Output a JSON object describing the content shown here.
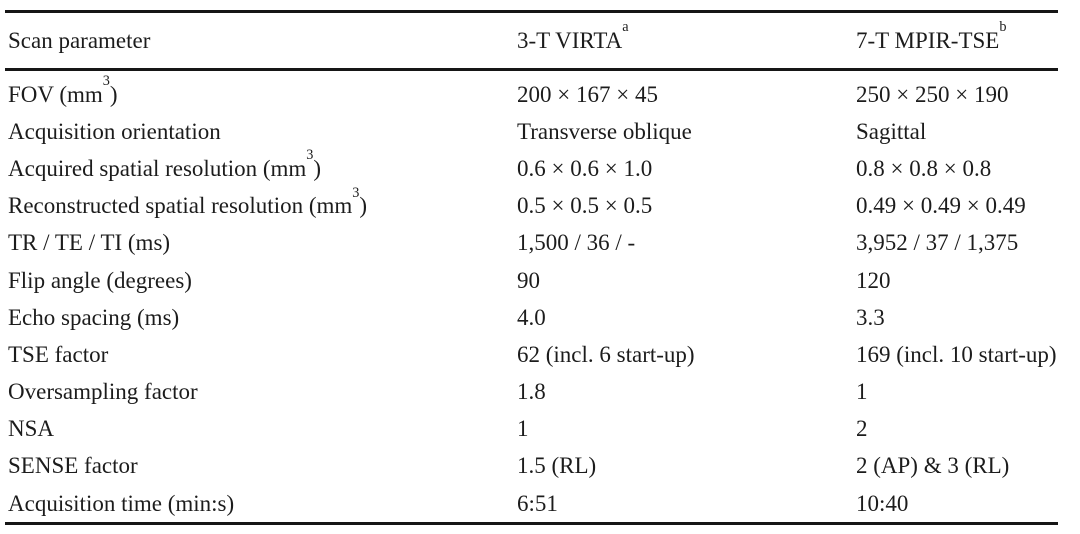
{
  "table": {
    "title_semantic": "Scan parameters comparison table",
    "text_color": "#1c1c1c",
    "rule_color": "#161616",
    "header": {
      "param": "Scan parameter",
      "col_3t": {
        "text": "3-T VIRTA",
        "sup": "a"
      },
      "col_7t": {
        "text": "7-T MPIR-TSE",
        "sup": "b"
      }
    },
    "rows": [
      {
        "label": "FOV (mm",
        "label_sup": "3",
        "label_rest": ")",
        "v3t": "200 × 167 × 45",
        "v7t": "250 × 250 × 190"
      },
      {
        "label": "Acquisition orientation",
        "v3t": "Transverse oblique",
        "v7t": "Sagittal"
      },
      {
        "label": "Acquired spatial resolution (mm",
        "label_sup": "3",
        "label_rest": ")",
        "v3t": "0.6 × 0.6 × 1.0",
        "v7t": "0.8 × 0.8 × 0.8"
      },
      {
        "label": "Reconstructed spatial resolution (mm",
        "label_sup": "3",
        "label_rest": ")",
        "v3t": "0.5 × 0.5 × 0.5",
        "v7t": "0.49 × 0.49 × 0.49"
      },
      {
        "label": "TR / TE / TI (ms)",
        "v3t": "1,500 / 36 / -",
        "v7t": "3,952 / 37 / 1,375"
      },
      {
        "label": "Flip angle (degrees)",
        "v3t": "90",
        "v7t": "120"
      },
      {
        "label": "Echo spacing (ms)",
        "v3t": "4.0",
        "v7t": "3.3"
      },
      {
        "label": "TSE factor",
        "v3t": "62 (incl. 6 start-up)",
        "v7t": "169 (incl. 10 start-up)"
      },
      {
        "label": "Oversampling factor",
        "v3t": "1.8",
        "v7t": "1"
      },
      {
        "label": "NSA",
        "v3t": "1",
        "v7t": "2"
      },
      {
        "label": "SENSE factor",
        "v3t": "1.5 (RL)",
        "v7t": "2 (AP) & 3 (RL)"
      },
      {
        "label": "Acquisition time (min:s)",
        "v3t": "6:51",
        "v7t": "10:40"
      }
    ]
  }
}
